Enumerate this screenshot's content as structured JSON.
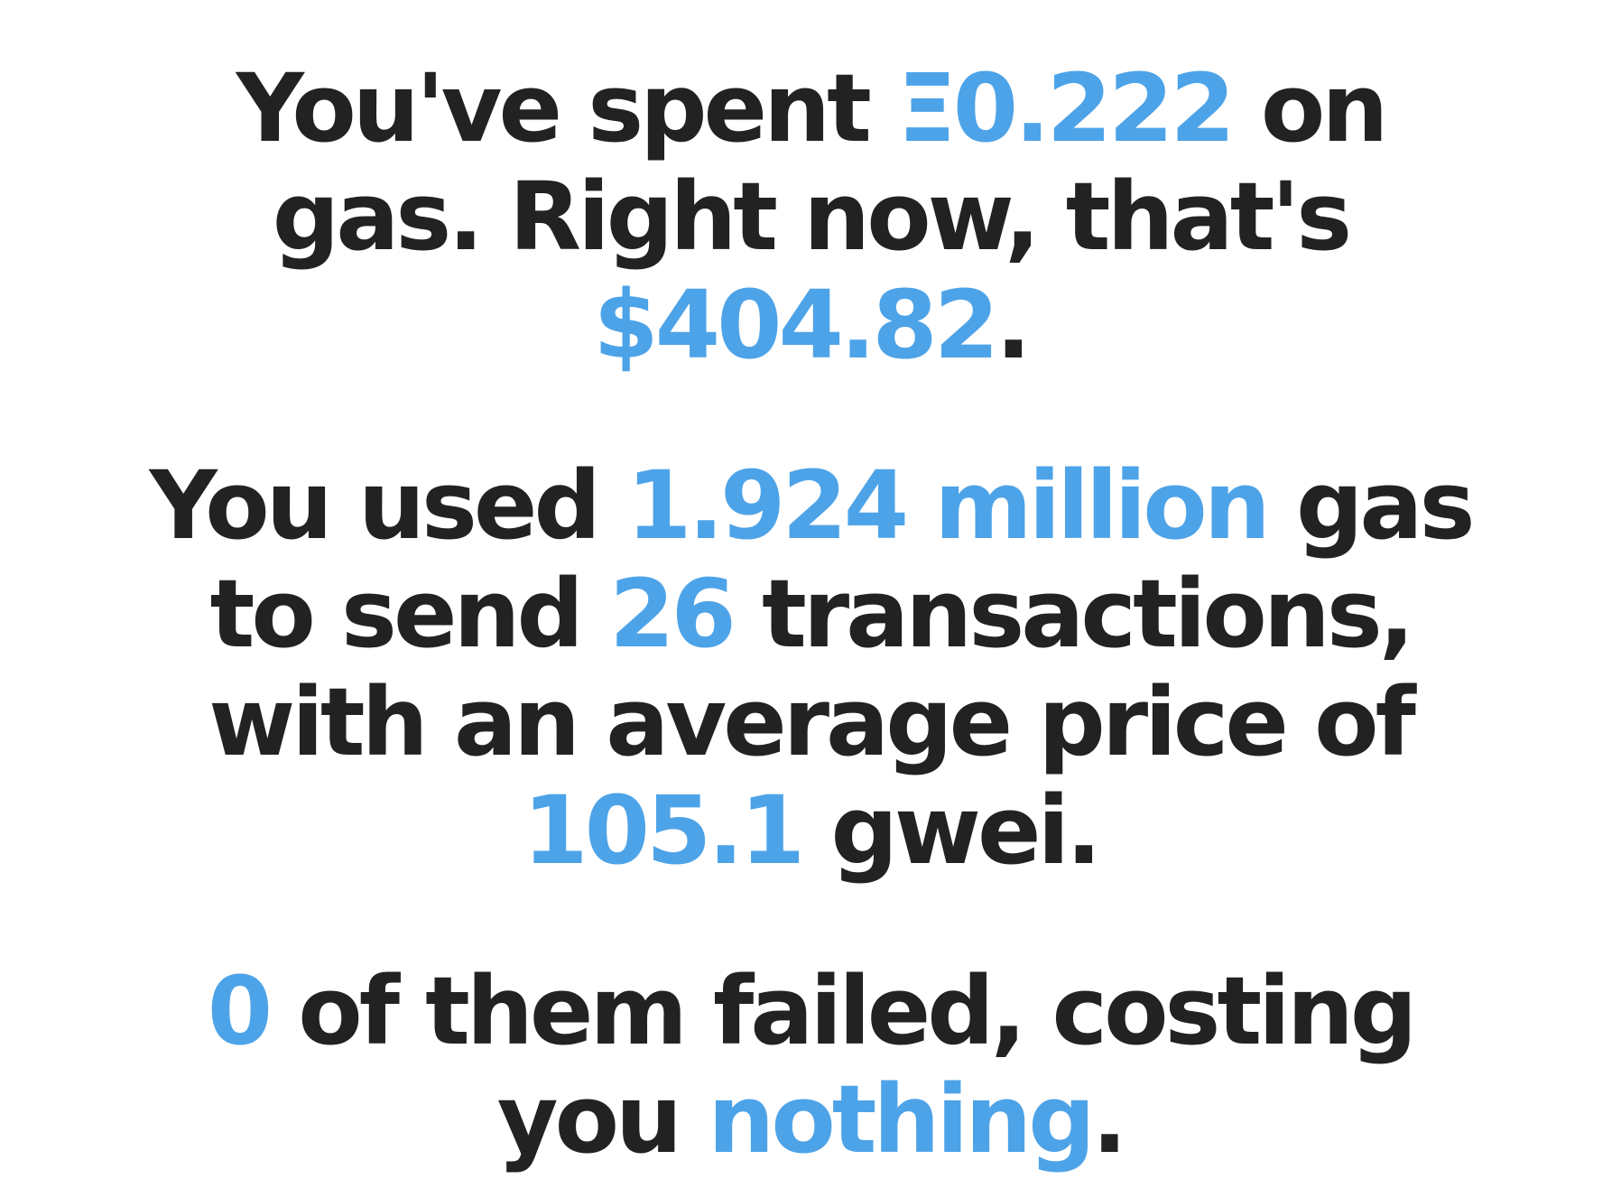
{
  "colors": {
    "text": "#222222",
    "highlight": "#4da3e8",
    "background": "#ffffff"
  },
  "spent": {
    "l1_a": "You've spent ",
    "eth": "Ξ0.222",
    "l1_b": " on",
    "l2": "gas. Right now, that's",
    "usd": "$404.82",
    "l3_end": "."
  },
  "usage": {
    "l1_a": "You used ",
    "gas_used": "1.924 million",
    "l1_b": " gas",
    "l2_a": "to send ",
    "tx_count": "26",
    "l2_b": " transactions,",
    "l3": "with an average price of",
    "avg_price": "105.1",
    "l4_b": " gwei."
  },
  "failed": {
    "count": "0",
    "l1_b": " of them failed, costing",
    "l2_a": "you ",
    "cost": "nothing",
    "l2_end": "."
  }
}
